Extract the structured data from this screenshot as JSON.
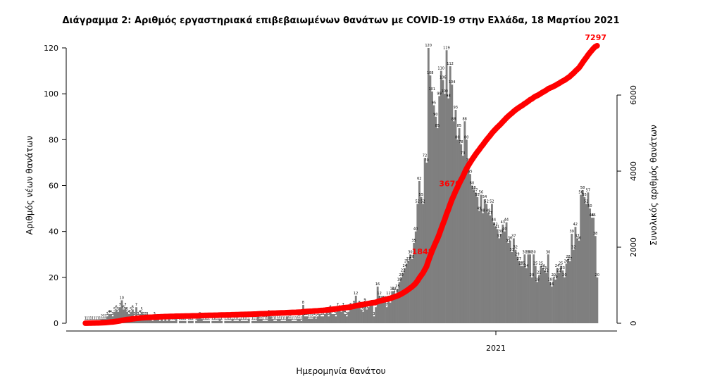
{
  "chart_data": {
    "type": "bar",
    "title": "Διάγραμμα 2: Αριθμός εργαστηριακά επιβεβαιωμένων θανάτων με COVID-19 στην Ελλάδα, 18 Μαρτίου 2021",
    "xlabel": "Ημερομηνία θανάτου",
    "ylabel": "Αριθμός νέων θανάτων",
    "y2label": "Συνολικός αριθμός θανάτων",
    "x_tick_labels": [
      "2021"
    ],
    "ylim": [
      0,
      120
    ],
    "y_ticks": [
      0,
      20,
      40,
      60,
      80,
      100,
      120
    ],
    "y2lim": [
      0,
      7297
    ],
    "y2_ticks": [
      0,
      2000,
      4000,
      6000
    ],
    "grid": false,
    "bar_color": "#7f7f7f",
    "line_color": "#ff0000",
    "series": [
      {
        "name": "Αριθμός νέων θανάτων",
        "values": [
          1,
          1,
          1,
          1,
          1,
          1,
          1,
          1,
          1,
          2,
          2,
          2,
          3,
          4,
          4,
          3,
          5,
          6,
          5,
          7,
          10,
          6,
          7,
          5,
          4,
          5,
          6,
          3,
          7,
          3,
          4,
          5,
          3,
          3,
          3,
          2,
          2,
          1,
          3,
          2,
          2,
          1,
          2,
          1,
          2,
          1,
          2,
          1,
          1,
          1,
          2,
          0,
          1,
          1,
          1,
          1,
          0,
          1,
          1,
          1,
          0,
          1,
          2,
          3,
          2,
          1,
          1,
          1,
          1,
          0,
          1,
          1,
          1,
          1,
          2,
          1,
          0,
          1,
          1,
          1,
          1,
          2,
          1,
          1,
          1,
          2,
          1,
          1,
          1,
          1,
          2,
          0,
          1,
          1,
          1,
          3,
          2,
          2,
          1,
          1,
          1,
          4,
          3,
          2,
          1,
          1,
          2,
          2,
          1,
          1,
          1,
          3,
          2,
          2,
          1,
          1,
          1,
          2,
          2,
          1,
          8,
          3,
          3,
          2,
          2,
          2,
          3,
          2,
          3,
          4,
          3,
          3,
          4,
          5,
          3,
          6,
          4,
          4,
          3,
          7,
          6,
          5,
          7,
          4,
          3,
          5,
          7,
          6,
          8,
          12,
          7,
          8,
          6,
          5,
          9,
          6,
          7,
          8,
          8,
          3,
          7,
          16,
          12,
          10,
          10,
          10,
          7,
          12,
          9,
          14,
          14,
          13,
          15,
          18,
          20,
          22,
          24,
          26,
          27,
          30,
          28,
          35,
          40,
          52,
          62,
          55,
          52,
          72,
          70,
          120,
          108,
          101,
          95,
          90,
          85,
          99,
          110,
          106,
          100,
          119,
          98,
          112,
          104,
          88,
          93,
          80,
          85,
          78,
          73,
          88,
          80,
          70,
          65,
          60,
          58,
          57,
          55,
          49,
          56,
          48,
          54,
          52,
          48,
          47,
          52,
          44,
          42,
          41,
          37,
          39,
          43,
          40,
          44,
          35,
          36,
          31,
          37,
          32,
          29,
          27,
          25,
          25,
          30,
          24,
          30,
          30,
          20,
          30,
          25,
          18,
          21,
          25,
          24,
          23,
          22,
          30,
          18,
          16,
          20,
          19,
          24,
          22,
          25,
          23,
          20,
          26,
          28,
          27,
          39,
          32,
          42,
          37,
          36,
          56,
          58,
          55,
          52,
          57,
          50,
          46,
          46,
          38,
          20
        ]
      },
      {
        "name": "Συνολικός αριθμός θανάτων",
        "cumulative_labels": [
          1848,
          3670,
          7297
        ]
      }
    ],
    "annotations": {
      "cumulative_points": [
        {
          "label": "1848",
          "value": 1848
        },
        {
          "label": "3670",
          "value": 3670
        },
        {
          "label": "7297",
          "value": 7297
        }
      ],
      "year_marker": "2021"
    }
  }
}
